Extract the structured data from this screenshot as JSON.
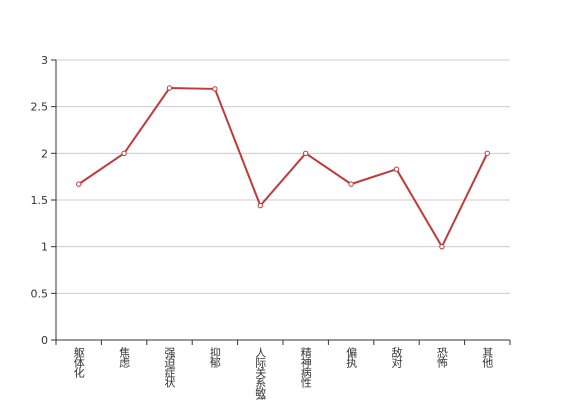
{
  "chart_data": {
    "type": "line",
    "categories": [
      "躯体化",
      "焦虑",
      "强迫症状",
      "抑郁",
      "人际关系敏感",
      "精神病性",
      "偏执",
      "敌对",
      "恐怖",
      "其他"
    ],
    "series": [
      {
        "color": "#c0393b",
        "values": [
          1.67,
          2.0,
          2.7,
          2.69,
          1.44,
          2.0,
          1.67,
          1.83,
          1.0,
          2.0
        ]
      }
    ],
    "ylim": [
      0,
      3
    ],
    "yticks": [
      0,
      0.5,
      1,
      1.5,
      2,
      2.5,
      3
    ],
    "grid": true
  }
}
